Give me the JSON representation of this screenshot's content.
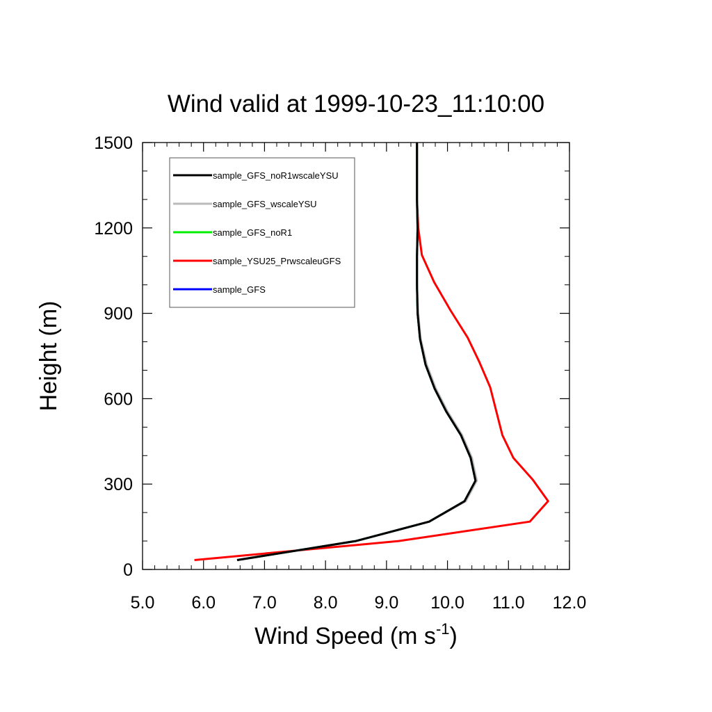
{
  "chart_data": {
    "type": "line",
    "title": "Wind valid at 1999-10-23_11:10:00",
    "xlabel": "Wind Speed (m s",
    "xlabel_superscript": "-1",
    "xlabel_suffix": ")",
    "ylabel": "Height (m)",
    "xlim": [
      5.0,
      12.0
    ],
    "ylim": [
      0,
      1500
    ],
    "x_ticks": [
      "5.0",
      "6.0",
      "7.0",
      "8.0",
      "9.0",
      "10.0",
      "11.0",
      "12.0"
    ],
    "y_ticks": [
      "0",
      "300",
      "600",
      "900",
      "1200",
      "1500"
    ],
    "legend_position": "top-left",
    "series": [
      {
        "name": "sample_GFS",
        "color": "#0000ff",
        "points": [
          [
            6.55,
            33
          ],
          [
            8.5,
            100
          ],
          [
            9.7,
            168
          ],
          [
            10.28,
            240
          ],
          [
            10.46,
            312
          ],
          [
            10.38,
            392
          ],
          [
            10.22,
            472
          ],
          [
            9.98,
            555
          ],
          [
            9.79,
            635
          ],
          [
            9.64,
            720
          ],
          [
            9.55,
            810
          ],
          [
            9.51,
            900
          ],
          [
            9.5,
            1000
          ],
          [
            9.5,
            1100
          ],
          [
            9.51,
            1200
          ],
          [
            9.5,
            1300
          ],
          [
            9.5,
            1400
          ],
          [
            9.5,
            1500
          ]
        ]
      },
      {
        "name": "sample_YSU25_PrwscaleuGFS",
        "color": "#ff0000",
        "points": [
          [
            5.85,
            33
          ],
          [
            9.2,
            100
          ],
          [
            11.35,
            168
          ],
          [
            11.65,
            240
          ],
          [
            11.4,
            315
          ],
          [
            11.08,
            392
          ],
          [
            10.9,
            472
          ],
          [
            10.7,
            640
          ],
          [
            10.52,
            730
          ],
          [
            10.33,
            815
          ],
          [
            10.05,
            910
          ],
          [
            9.78,
            1010
          ],
          [
            9.58,
            1105
          ],
          [
            9.52,
            1200
          ],
          [
            9.5,
            1300
          ],
          [
            9.5,
            1400
          ],
          [
            9.5,
            1500
          ]
        ]
      },
      {
        "name": "sample_GFS_noR1",
        "color": "#00ee00",
        "points": [
          [
            6.55,
            33
          ],
          [
            8.5,
            100
          ],
          [
            9.7,
            168
          ],
          [
            10.28,
            240
          ],
          [
            10.46,
            312
          ],
          [
            10.38,
            392
          ],
          [
            10.22,
            472
          ],
          [
            9.98,
            555
          ],
          [
            9.79,
            635
          ],
          [
            9.64,
            720
          ],
          [
            9.55,
            810
          ],
          [
            9.51,
            900
          ],
          [
            9.5,
            1000
          ],
          [
            9.5,
            1100
          ],
          [
            9.51,
            1200
          ],
          [
            9.5,
            1300
          ],
          [
            9.5,
            1400
          ],
          [
            9.5,
            1500
          ]
        ]
      },
      {
        "name": "sample_GFS_wscaleYSU",
        "color": "#bbbbbb",
        "points": [
          [
            6.55,
            33
          ],
          [
            8.5,
            100
          ],
          [
            9.7,
            168
          ],
          [
            10.3,
            240
          ],
          [
            10.48,
            312
          ],
          [
            10.4,
            392
          ],
          [
            10.24,
            472
          ],
          [
            10.0,
            555
          ],
          [
            9.81,
            635
          ],
          [
            9.66,
            720
          ],
          [
            9.56,
            810
          ],
          [
            9.52,
            900
          ],
          [
            9.5,
            1000
          ],
          [
            9.5,
            1100
          ],
          [
            9.51,
            1200
          ],
          [
            9.5,
            1300
          ],
          [
            9.5,
            1400
          ],
          [
            9.5,
            1500
          ]
        ]
      },
      {
        "name": "sample_GFS_noR1wscaleYSU",
        "color": "#000000",
        "points": [
          [
            6.55,
            33
          ],
          [
            8.5,
            100
          ],
          [
            9.7,
            168
          ],
          [
            10.28,
            240
          ],
          [
            10.46,
            312
          ],
          [
            10.38,
            392
          ],
          [
            10.22,
            472
          ],
          [
            9.98,
            555
          ],
          [
            9.79,
            635
          ],
          [
            9.64,
            720
          ],
          [
            9.55,
            810
          ],
          [
            9.51,
            900
          ],
          [
            9.5,
            1000
          ],
          [
            9.5,
            1100
          ],
          [
            9.51,
            1200
          ],
          [
            9.5,
            1300
          ],
          [
            9.5,
            1400
          ],
          [
            9.5,
            1500
          ]
        ]
      }
    ],
    "legend_order": [
      "sample_GFS_noR1wscaleYSU",
      "sample_GFS_wscaleYSU",
      "sample_GFS_noR1",
      "sample_YSU25_PrwscaleuGFS",
      "sample_GFS"
    ]
  }
}
